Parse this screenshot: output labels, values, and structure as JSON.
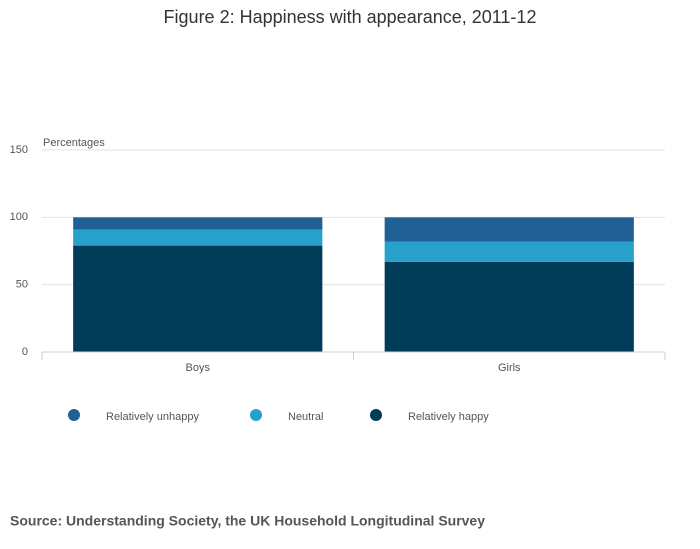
{
  "chart_data": {
    "type": "stacked_bar",
    "title": "Figure 2: Happiness with appearance, 2011-12",
    "ylabel": "Percentages",
    "categories": [
      "Boys",
      "Girls"
    ],
    "series": [
      {
        "name": "Relatively unhappy",
        "color": "#206095",
        "values": [
          9,
          18
        ]
      },
      {
        "name": "Neutral",
        "color": "#27a0cc",
        "values": [
          12,
          15
        ]
      },
      {
        "name": "Relatively happy",
        "color": "#003c57",
        "values": [
          79,
          67
        ]
      }
    ],
    "ylim": [
      0,
      150
    ],
    "yticks": [
      0,
      50,
      100,
      150
    ],
    "grid": true,
    "source": "Source: Understanding Society, the UK Household Longitudinal Survey"
  }
}
